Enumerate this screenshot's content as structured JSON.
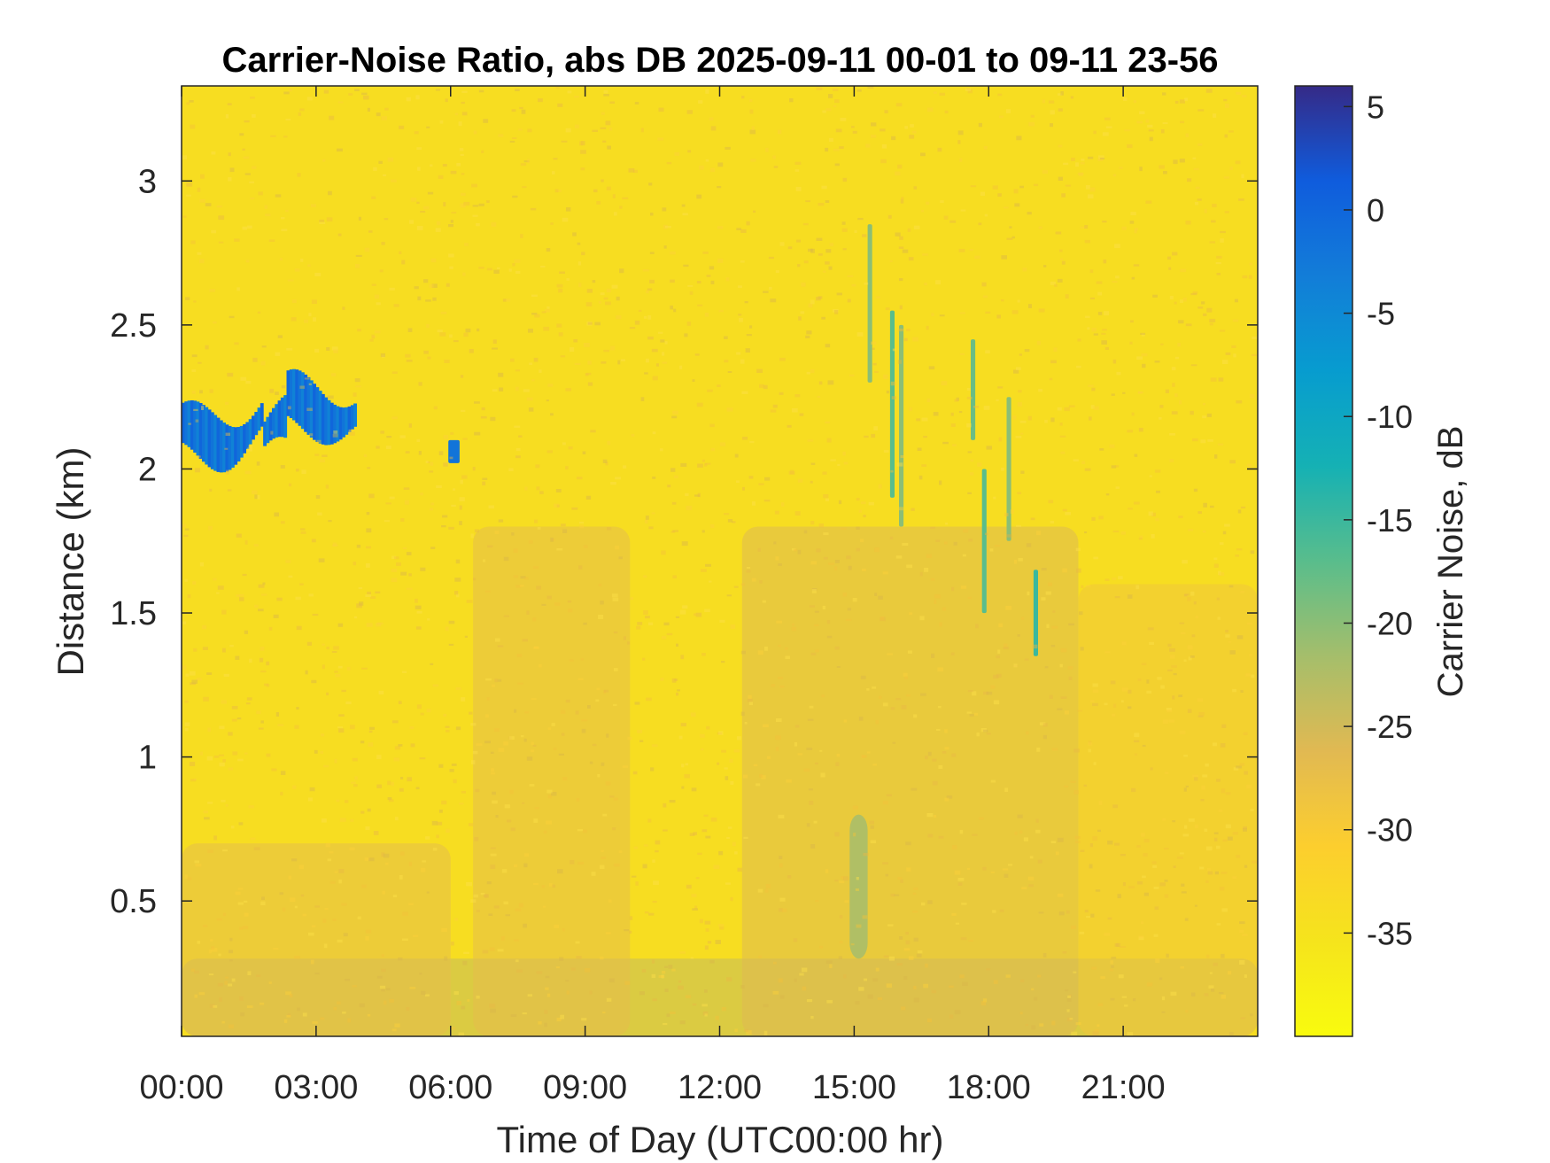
{
  "chart_data": {
    "type": "heatmap",
    "title": "Carrier-Noise Ratio, abs DB 2025-09-11 00-01 to 09-11 23-56",
    "xlabel": "Time of Day (UTC00:00 hr)",
    "ylabel": "Distance (km)",
    "colorbar_label": "Carrier Noise, dB",
    "xlim": [
      0,
      24
    ],
    "ylim": [
      0.03,
      3.33
    ],
    "x_ticks": [
      0,
      3,
      6,
      9,
      12,
      15,
      18,
      21
    ],
    "x_tick_labels": [
      "00:00",
      "03:00",
      "06:00",
      "09:00",
      "12:00",
      "15:00",
      "18:00",
      "21:00"
    ],
    "y_ticks": [
      0.5,
      1,
      1.5,
      2,
      2.5,
      3
    ],
    "y_tick_labels": [
      "0.5",
      "1",
      "1.5",
      "2",
      "2.5",
      "3"
    ],
    "clim": [
      -40,
      6
    ],
    "colorbar_ticks": [
      5,
      0,
      -5,
      -10,
      -15,
      -20,
      -25,
      -30,
      -35
    ],
    "colorbar_tick_labels": [
      "5",
      "0",
      "-5",
      "-10",
      "-15",
      "-20",
      "-25",
      "-30",
      "-35"
    ],
    "colormap": "parula",
    "background_level_db": -34,
    "features": [
      {
        "label": "cloud layer",
        "x_range": [
          0,
          3.9
        ],
        "y_range": [
          1.95,
          2.35
        ],
        "value_db": 0
      },
      {
        "label": "small cloud",
        "x_range": [
          5.95,
          6.2
        ],
        "y_range": [
          2.02,
          2.1
        ],
        "value_db": -2
      },
      {
        "label": "near-surface aerosol layer",
        "x_range": [
          0,
          24
        ],
        "y_range": [
          0.03,
          0.3
        ],
        "value_db": -24
      },
      {
        "label": "boundary layer",
        "x_range": [
          0,
          6
        ],
        "y_range": [
          0.03,
          0.7
        ],
        "value_db": -27
      },
      {
        "label": "boundary layer",
        "x_range": [
          6.5,
          10
        ],
        "y_range": [
          0.03,
          1.8
        ],
        "value_db": -27
      },
      {
        "label": "boundary layer",
        "x_range": [
          12.5,
          20
        ],
        "y_range": [
          0.03,
          1.8
        ],
        "value_db": -26
      },
      {
        "label": "boundary layer",
        "x_range": [
          20,
          24
        ],
        "y_range": [
          0.03,
          1.6
        ],
        "value_db": -29
      },
      {
        "label": "plume",
        "x_range": [
          14.9,
          15.3
        ],
        "y_range": [
          0.3,
          0.8
        ],
        "value_db": -22
      },
      {
        "label": "streak",
        "x_range": [
          15.3,
          15.4
        ],
        "y_range": [
          2.3,
          2.85
        ],
        "value_db": -20
      },
      {
        "label": "streak",
        "x_range": [
          15.8,
          15.9
        ],
        "y_range": [
          1.9,
          2.55
        ],
        "value_db": -17
      },
      {
        "label": "streak",
        "x_range": [
          16.0,
          16.1
        ],
        "y_range": [
          1.8,
          2.5
        ],
        "value_db": -20
      },
      {
        "label": "streak",
        "x_range": [
          17.6,
          17.7
        ],
        "y_range": [
          2.1,
          2.45
        ],
        "value_db": -18
      },
      {
        "label": "streak",
        "x_range": [
          17.85,
          17.95
        ],
        "y_range": [
          1.5,
          2.0
        ],
        "value_db": -17
      },
      {
        "label": "streak",
        "x_range": [
          18.4,
          18.5
        ],
        "y_range": [
          1.75,
          2.25
        ],
        "value_db": -20
      },
      {
        "label": "streak",
        "x_range": [
          19.0,
          19.1
        ],
        "y_range": [
          1.35,
          1.65
        ],
        "value_db": -15
      }
    ]
  }
}
